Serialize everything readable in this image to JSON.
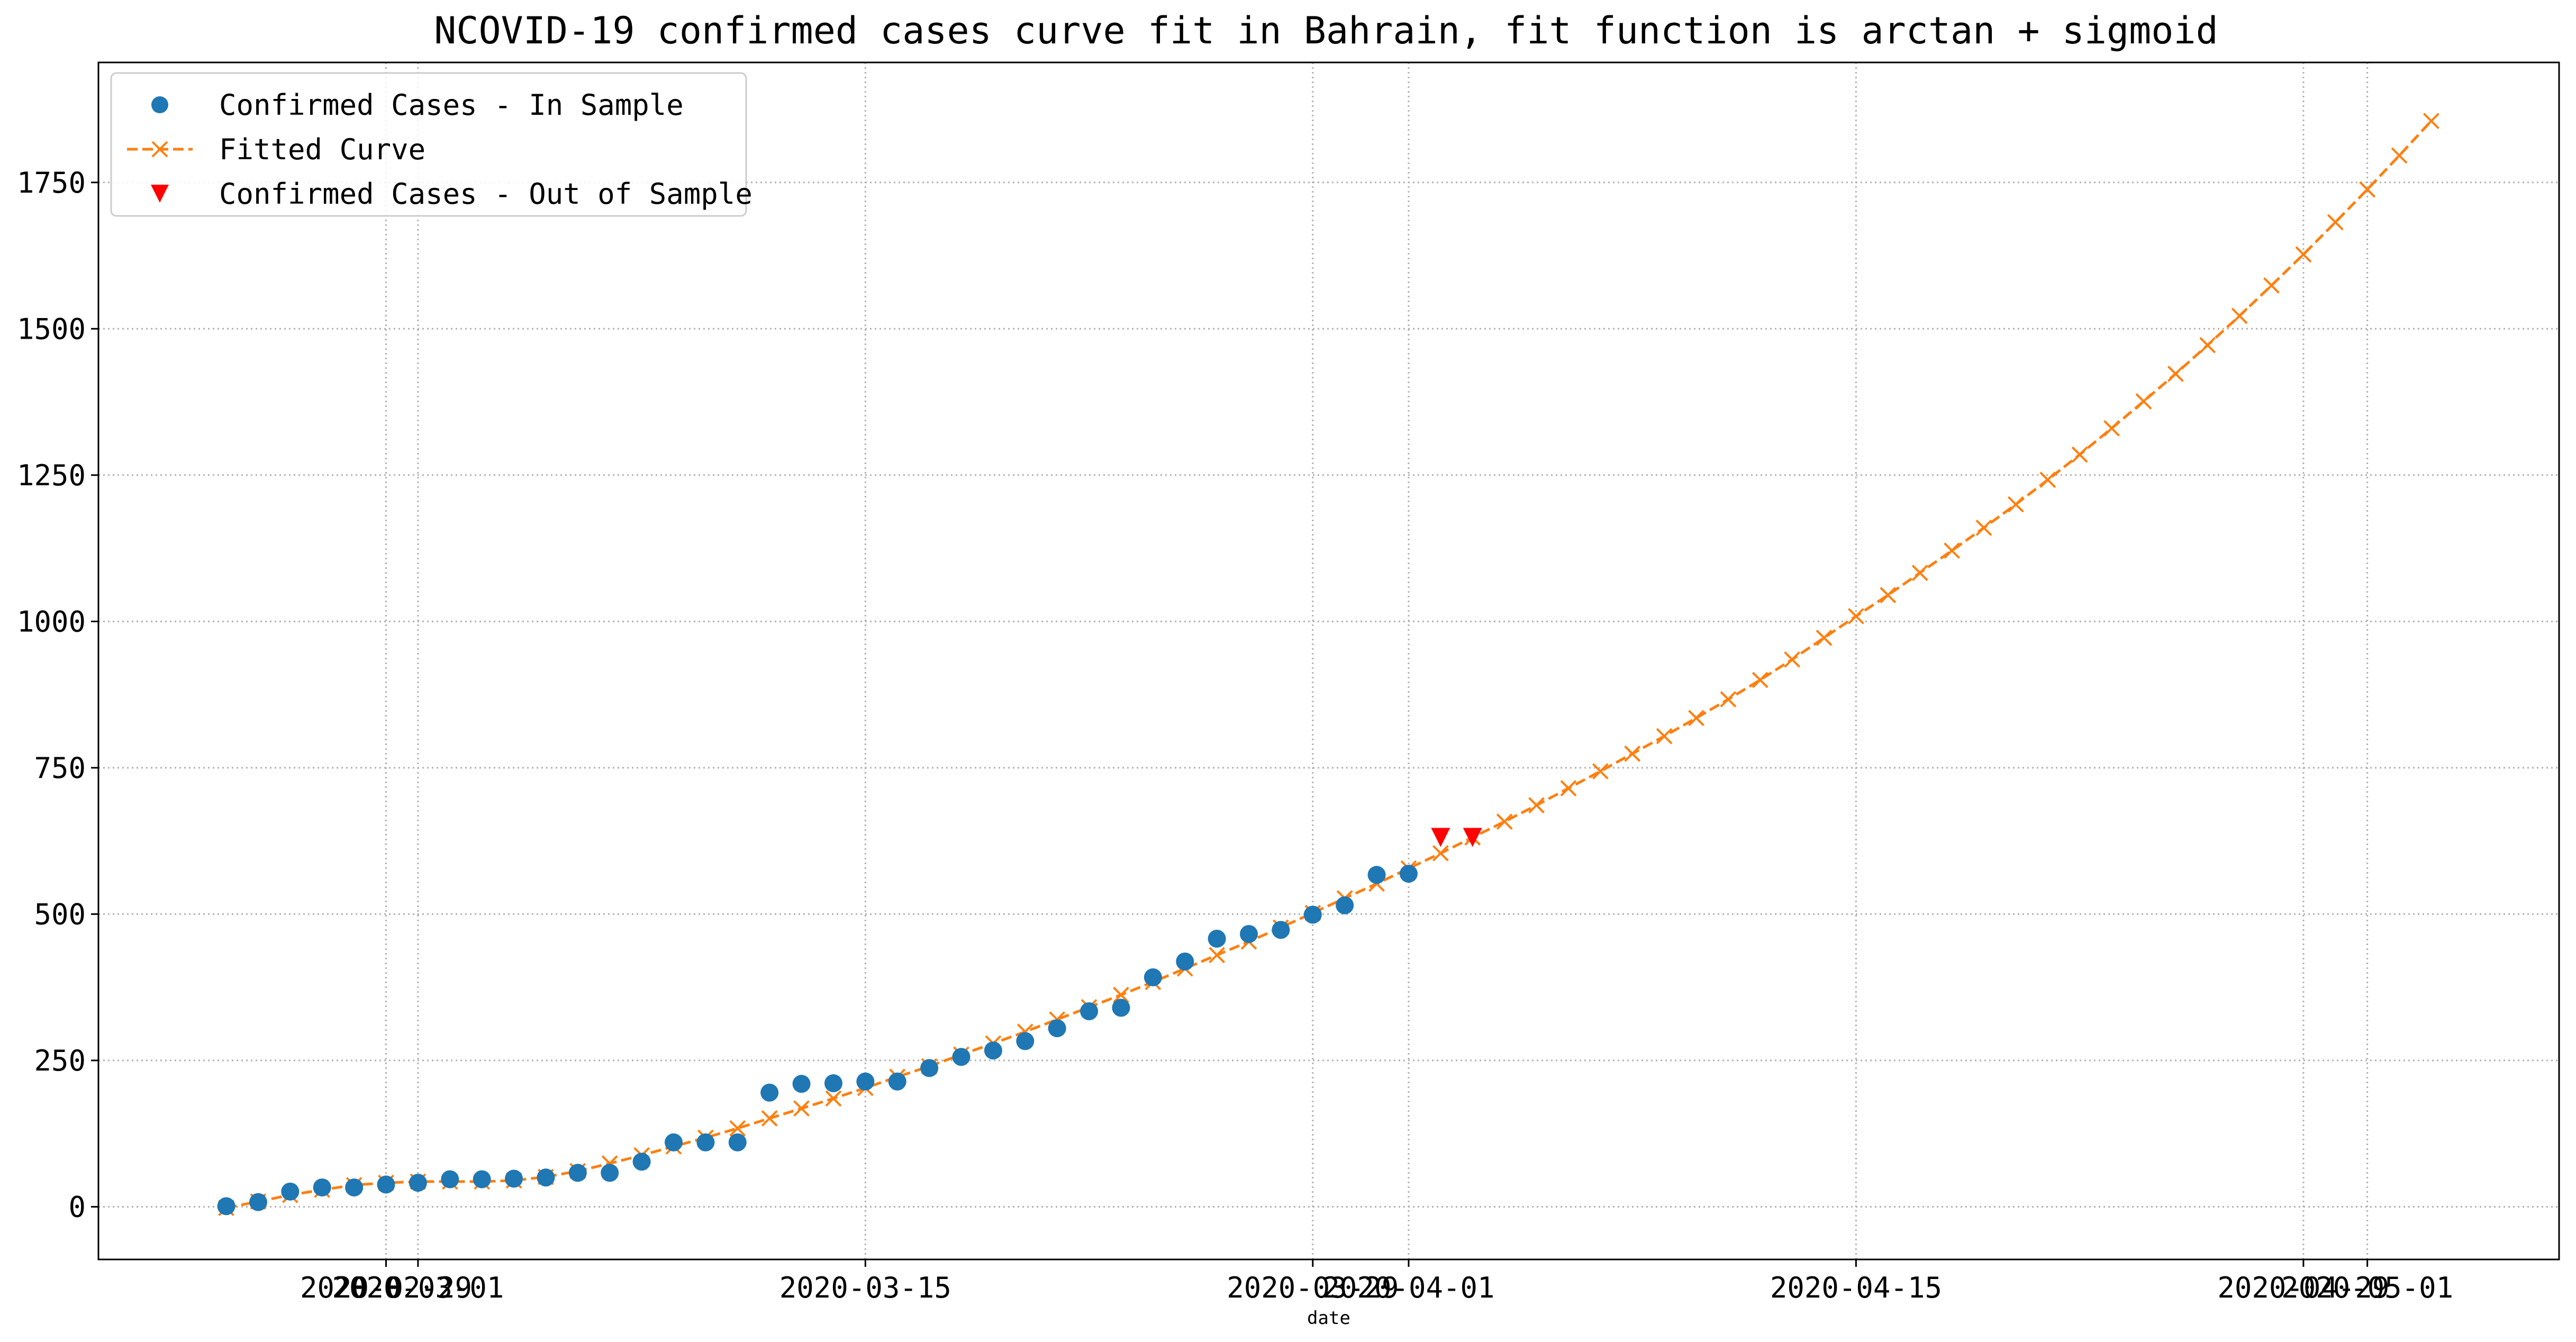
{
  "chart_data": {
    "type": "line",
    "title": "NCOVID-19 confirmed cases curve fit in Bahrain, fit function is arctan + sigmoid",
    "xlabel": "date",
    "ylabel": "",
    "x_start": "2020-02-24",
    "xlim": [
      "2020-02-20",
      "2020-05-07"
    ],
    "ylim": [
      -90,
      1955
    ],
    "x_ticks": [
      {
        "date": "2020-02-29",
        "label": "2020-02-29"
      },
      {
        "date": "2020-03-01",
        "label": "2020-03-01"
      },
      {
        "date": "2020-03-15",
        "label": "2020-03-15"
      },
      {
        "date": "2020-03-29",
        "label": "2020-03-29"
      },
      {
        "date": "2020-04-01",
        "label": "2020-04-01"
      },
      {
        "date": "2020-04-15",
        "label": "2020-04-15"
      },
      {
        "date": "2020-04-29",
        "label": "2020-04-29"
      },
      {
        "date": "2020-05-01",
        "label": "2020-05-01"
      }
    ],
    "y_ticks": [
      0,
      250,
      500,
      750,
      1000,
      1250,
      1500,
      1750
    ],
    "grid": true,
    "legend_position": "top-left",
    "series": [
      {
        "name": "Confirmed Cases - In Sample",
        "marker": "circle",
        "color": "#1f77b4",
        "points": [
          [
            "2020-02-24",
            1
          ],
          [
            "2020-02-25",
            8
          ],
          [
            "2020-02-26",
            26
          ],
          [
            "2020-02-27",
            33
          ],
          [
            "2020-02-28",
            33
          ],
          [
            "2020-02-29",
            38
          ],
          [
            "2020-03-01",
            41
          ],
          [
            "2020-03-02",
            47
          ],
          [
            "2020-03-03",
            47
          ],
          [
            "2020-03-04",
            48
          ],
          [
            "2020-03-05",
            50
          ],
          [
            "2020-03-06",
            58
          ],
          [
            "2020-03-07",
            58
          ],
          [
            "2020-03-08",
            77
          ],
          [
            "2020-03-09",
            110
          ],
          [
            "2020-03-10",
            110
          ],
          [
            "2020-03-11",
            110
          ],
          [
            "2020-03-12",
            195
          ],
          [
            "2020-03-13",
            210
          ],
          [
            "2020-03-14",
            211
          ],
          [
            "2020-03-15",
            214
          ],
          [
            "2020-03-16",
            214
          ],
          [
            "2020-03-17",
            237
          ],
          [
            "2020-03-18",
            256
          ],
          [
            "2020-03-19",
            267
          ],
          [
            "2020-03-20",
            283
          ],
          [
            "2020-03-21",
            305
          ],
          [
            "2020-03-22",
            334
          ],
          [
            "2020-03-23",
            340
          ],
          [
            "2020-03-24",
            392
          ],
          [
            "2020-03-25",
            419
          ],
          [
            "2020-03-26",
            458
          ],
          [
            "2020-03-27",
            466
          ],
          [
            "2020-03-28",
            473
          ],
          [
            "2020-03-29",
            499
          ],
          [
            "2020-03-30",
            515
          ],
          [
            "2020-03-31",
            567
          ],
          [
            "2020-04-01",
            569
          ]
        ]
      },
      {
        "name": "Fitted Curve",
        "marker": "x",
        "color": "#ff7f0e",
        "points": [
          [
            "2020-02-24",
            -2
          ],
          [
            "2020-02-25",
            9
          ],
          [
            "2020-02-26",
            20
          ],
          [
            "2020-02-27",
            29
          ],
          [
            "2020-02-28",
            37
          ],
          [
            "2020-02-29",
            41
          ],
          [
            "2020-03-01",
            43
          ],
          [
            "2020-03-02",
            43
          ],
          [
            "2020-03-03",
            43
          ],
          [
            "2020-03-04",
            45
          ],
          [
            "2020-03-05",
            51
          ],
          [
            "2020-03-06",
            61
          ],
          [
            "2020-03-07",
            74
          ],
          [
            "2020-03-08",
            88
          ],
          [
            "2020-03-09",
            103
          ],
          [
            "2020-03-10",
            118
          ],
          [
            "2020-03-11",
            134
          ],
          [
            "2020-03-12",
            151
          ],
          [
            "2020-03-13",
            168
          ],
          [
            "2020-03-14",
            185
          ],
          [
            "2020-03-15",
            203
          ],
          [
            "2020-03-16",
            222
          ],
          [
            "2020-03-17",
            240
          ],
          [
            "2020-03-18",
            260
          ],
          [
            "2020-03-19",
            279
          ],
          [
            "2020-03-20",
            299
          ],
          [
            "2020-03-21",
            320
          ],
          [
            "2020-03-22",
            341
          ],
          [
            "2020-03-23",
            362
          ],
          [
            "2020-03-24",
            384
          ],
          [
            "2020-03-25",
            407
          ],
          [
            "2020-03-26",
            430
          ],
          [
            "2020-03-27",
            453
          ],
          [
            "2020-03-28",
            477
          ],
          [
            "2020-03-29",
            502
          ],
          [
            "2020-03-30",
            527
          ],
          [
            "2020-03-31",
            552
          ],
          [
            "2020-04-01",
            578
          ],
          [
            "2020-04-02",
            604
          ],
          [
            "2020-04-03",
            631
          ],
          [
            "2020-04-04",
            658
          ],
          [
            "2020-04-05",
            686
          ],
          [
            "2020-04-06",
            715
          ],
          [
            "2020-04-07",
            744
          ],
          [
            "2020-04-08",
            774
          ],
          [
            "2020-04-09",
            804
          ],
          [
            "2020-04-10",
            835
          ],
          [
            "2020-04-11",
            867
          ],
          [
            "2020-04-12",
            900
          ],
          [
            "2020-04-13",
            935
          ],
          [
            "2020-04-14",
            972
          ],
          [
            "2020-04-15",
            1009
          ],
          [
            "2020-04-16",
            1045
          ],
          [
            "2020-04-17",
            1083
          ],
          [
            "2020-04-18",
            1121
          ],
          [
            "2020-04-19",
            1160
          ],
          [
            "2020-04-20",
            1200
          ],
          [
            "2020-04-21",
            1242
          ],
          [
            "2020-04-22",
            1285
          ],
          [
            "2020-04-23",
            1330
          ],
          [
            "2020-04-24",
            1376
          ],
          [
            "2020-04-25",
            1423
          ],
          [
            "2020-04-26",
            1472
          ],
          [
            "2020-04-27",
            1522
          ],
          [
            "2020-04-28",
            1574
          ],
          [
            "2020-04-29",
            1627
          ],
          [
            "2020-04-30",
            1682
          ],
          [
            "2020-05-01",
            1738
          ],
          [
            "2020-05-02",
            1796
          ],
          [
            "2020-05-03",
            1855
          ]
        ]
      },
      {
        "name": "Confirmed Cases - Out of Sample",
        "marker": "triangle-down",
        "color": "#ff0000",
        "points": [
          [
            "2020-04-02",
            631
          ],
          [
            "2020-04-03",
            631
          ]
        ]
      }
    ]
  }
}
